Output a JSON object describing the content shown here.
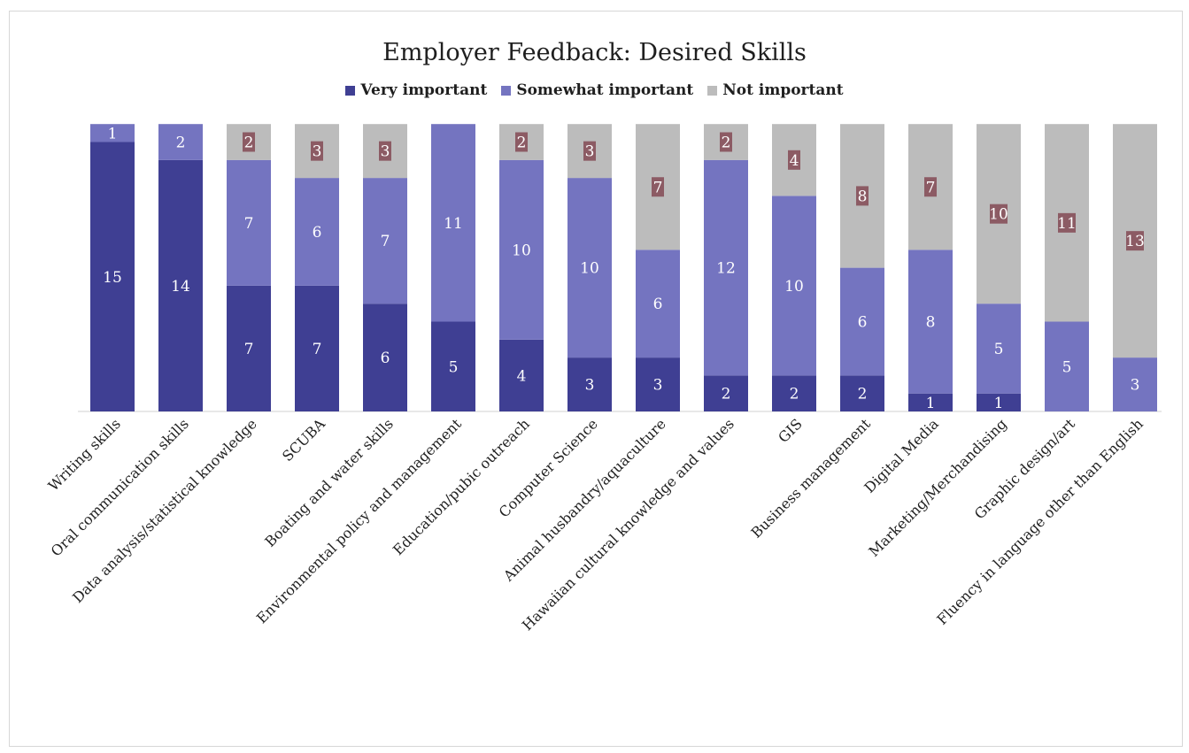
{
  "chart_data": {
    "type": "bar",
    "stacked": true,
    "title": "Employer Feedback: Desired Skills",
    "xlabel": "",
    "ylabel": "",
    "ylim": [
      0,
      16
    ],
    "grid": false,
    "legend_position": "top",
    "categories": [
      "Writing skills",
      "Oral communication skills",
      "Data analysis/statistical knowledge",
      "SCUBA",
      "Boating and water skills",
      "Environmental policy and management",
      "Education/pubic outreach",
      "Computer Science",
      "Animal husbandry/aquaculture",
      "Hawaiian cultural knowledge and values",
      "GIS",
      "Business management",
      "Digital Media",
      "Marketing/Merchandising",
      "Graphic design/art",
      "Fluency in language other than English"
    ],
    "series": [
      {
        "name": "Very important",
        "color": "#3f3f93",
        "values": [
          15,
          14,
          7,
          7,
          6,
          5,
          4,
          3,
          3,
          2,
          2,
          2,
          1,
          1,
          0,
          0
        ]
      },
      {
        "name": "Somewhat important",
        "color": "#7474c0",
        "values": [
          1,
          2,
          7,
          6,
          7,
          11,
          10,
          10,
          6,
          12,
          10,
          6,
          8,
          5,
          5,
          3
        ]
      },
      {
        "name": "Not important",
        "color": "#bcbcbc",
        "label_color": "#8c5b64",
        "values": [
          0,
          0,
          2,
          3,
          3,
          0,
          2,
          3,
          7,
          2,
          4,
          8,
          7,
          10,
          11,
          13
        ]
      }
    ]
  }
}
